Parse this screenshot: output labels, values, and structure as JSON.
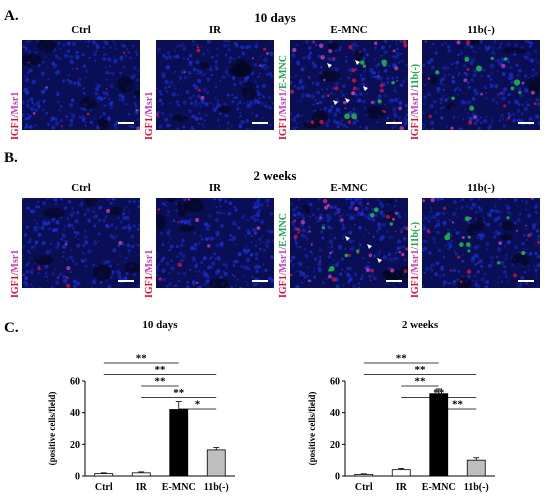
{
  "figure": {
    "panelA": {
      "letter": "A.",
      "title": "10 days",
      "columns": [
        {
          "title": "Ctrl",
          "side_label": [
            "IGF1",
            "/",
            "Msr1"
          ]
        },
        {
          "title": "IR",
          "side_label": [
            "IGF1",
            "/",
            "Msr1"
          ]
        },
        {
          "title": "E-MNC",
          "side_label": [
            "IGF1",
            "/Msr1/",
            "E-MNC"
          ]
        },
        {
          "title": "11b(-)",
          "side_label": [
            "IGF1",
            "/Msr1/",
            "11b(-)"
          ]
        }
      ]
    },
    "panelB": {
      "letter": "B.",
      "title": "2 weeks",
      "columns": [
        {
          "title": "Ctrl",
          "side_label": [
            "IGF1",
            "/",
            "Msr1"
          ]
        },
        {
          "title": "IR",
          "side_label": [
            "IGF1",
            "/",
            "Msr1"
          ]
        },
        {
          "title": "E-MNC",
          "side_label": [
            "IGF1",
            "/Msr1/",
            "E-MNC"
          ]
        },
        {
          "title": "11b(-)",
          "side_label": [
            "IGF1",
            "/Msr1/",
            "11b(-)"
          ]
        }
      ]
    },
    "panelC": {
      "letter": "C."
    },
    "colors": {
      "nuclei": "#1a2fd0",
      "igf1": "#d2143a",
      "msr1": "#c040b0",
      "emnc": "#1aa64a",
      "bar_dark": "#000000",
      "bar_gray": "#bfbfbf"
    }
  },
  "chart_data": [
    {
      "type": "bar",
      "title": "10 days",
      "categories": [
        "Ctrl",
        "IR",
        "E-MNC",
        "11b(-)"
      ],
      "values": [
        1.5,
        2,
        42,
        16.5
      ],
      "errors": [
        0.5,
        0.6,
        5,
        1.5
      ],
      "ylabel": "(positive cells/field)",
      "ylim": [
        0,
        60
      ],
      "yticks": [
        0,
        20,
        40,
        60
      ],
      "significance": [
        {
          "pair": [
            "Ctrl",
            "E-MNC"
          ],
          "label": "**"
        },
        {
          "pair": [
            "Ctrl",
            "11b(-)"
          ],
          "label": "**"
        },
        {
          "pair": [
            "IR",
            "E-MNC"
          ],
          "label": "**"
        },
        {
          "pair": [
            "IR",
            "11b(-)"
          ],
          "label": "**"
        },
        {
          "pair": [
            "E-MNC",
            "11b(-)"
          ],
          "label": "*"
        }
      ]
    },
    {
      "type": "bar",
      "title": "2 weeks",
      "categories": [
        "Ctrl",
        "IR",
        "E-MNC",
        "11b(-)"
      ],
      "values": [
        1,
        4,
        52,
        10
      ],
      "errors": [
        0.4,
        0.8,
        3,
        1.5
      ],
      "ylabel": "(positive cells/field)",
      "ylim": [
        0,
        60
      ],
      "yticks": [
        0,
        20,
        40,
        60
      ],
      "significance": [
        {
          "pair": [
            "Ctrl",
            "E-MNC"
          ],
          "label": "**"
        },
        {
          "pair": [
            "Ctrl",
            "11b(-)"
          ],
          "label": "**"
        },
        {
          "pair": [
            "IR",
            "E-MNC"
          ],
          "label": "**"
        },
        {
          "pair": [
            "IR",
            "11b(-)"
          ],
          "label": "**"
        },
        {
          "pair": [
            "E-MNC",
            "11b(-)"
          ],
          "label": "**"
        }
      ]
    }
  ]
}
